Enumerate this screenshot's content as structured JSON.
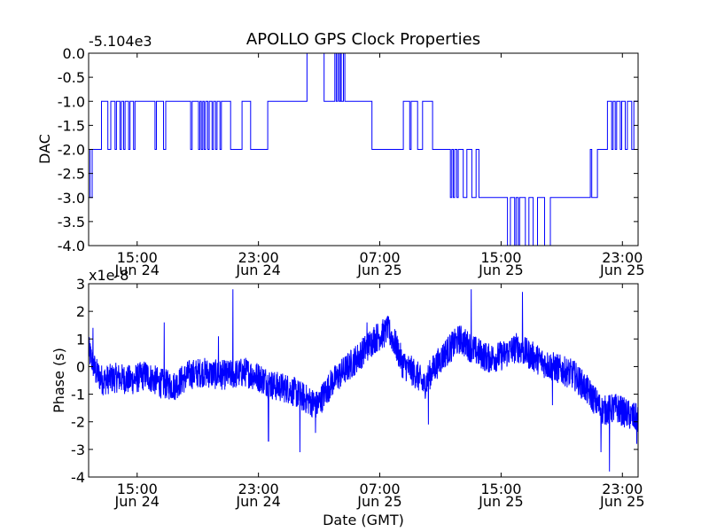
{
  "title": "APOLLO GPS Clock Properties",
  "colors": {
    "series": "#0000ff",
    "axis": "#000000",
    "background": "#ffffff"
  },
  "chart_data": [
    {
      "type": "line",
      "name": "dac-chart",
      "title": "APOLLO GPS Clock Properties",
      "ylabel": "DAC",
      "xlabel": "",
      "offset_label": "-5.104e3",
      "x_unit": "hours since 2011-06-24 10:00 GMT",
      "xlim": [
        0,
        38.5
      ],
      "ylim": [
        -4.0,
        0.0
      ],
      "yticks": [
        0.0,
        -0.5,
        -1.0,
        -1.5,
        -2.0,
        -2.5,
        -3.0,
        -3.5,
        -4.0
      ],
      "ytick_labels": [
        "0.0",
        "-0.5",
        "-1.0",
        "-1.5",
        "-2.0",
        "-2.5",
        "-3.0",
        "-3.5",
        "-4.0"
      ],
      "xticks": [
        {
          "x": 3.4,
          "time": "15:00",
          "date": "Jun 24"
        },
        {
          "x": 11.9,
          "time": "23:00",
          "date": "Jun 24"
        },
        {
          "x": 20.4,
          "time": "07:00",
          "date": "Jun 25"
        },
        {
          "x": 28.9,
          "time": "15:00",
          "date": "Jun 25"
        },
        {
          "x": 37.4,
          "time": "23:00",
          "date": "Jun 25"
        }
      ],
      "step_points": [
        [
          0.0,
          -2.0
        ],
        [
          0.1,
          -3.0
        ],
        [
          0.25,
          -2.0
        ],
        [
          0.8,
          -2.0
        ],
        [
          0.9,
          -1.0
        ],
        [
          1.3,
          -1.0
        ],
        [
          1.35,
          -2.0
        ],
        [
          1.5,
          -2.0
        ],
        [
          1.55,
          -1.0
        ],
        [
          1.8,
          -1.0
        ],
        [
          1.85,
          -2.0
        ],
        [
          1.95,
          -1.0
        ],
        [
          2.15,
          -1.0
        ],
        [
          2.2,
          -2.0
        ],
        [
          2.3,
          -1.0
        ],
        [
          2.45,
          -2.0
        ],
        [
          2.55,
          -1.0
        ],
        [
          2.75,
          -1.0
        ],
        [
          2.8,
          -2.0
        ],
        [
          2.9,
          -1.0
        ],
        [
          3.1,
          -1.0
        ],
        [
          3.15,
          -2.0
        ],
        [
          3.25,
          -1.0
        ],
        [
          4.6,
          -1.0
        ],
        [
          4.65,
          -2.0
        ],
        [
          4.75,
          -1.0
        ],
        [
          5.2,
          -1.0
        ],
        [
          5.25,
          -2.0
        ],
        [
          5.4,
          -1.0
        ],
        [
          7.1,
          -1.0
        ],
        [
          7.15,
          -2.0
        ],
        [
          7.25,
          -1.0
        ],
        [
          7.65,
          -1.0
        ],
        [
          7.7,
          -2.0
        ],
        [
          7.8,
          -1.0
        ],
        [
          7.9,
          -2.0
        ],
        [
          8.0,
          -1.0
        ],
        [
          8.1,
          -2.0
        ],
        [
          8.2,
          -1.0
        ],
        [
          8.35,
          -2.0
        ],
        [
          8.45,
          -1.0
        ],
        [
          8.6,
          -1.0
        ],
        [
          8.65,
          -2.0
        ],
        [
          8.75,
          -1.0
        ],
        [
          8.9,
          -2.0
        ],
        [
          9.0,
          -1.0
        ],
        [
          9.15,
          -1.0
        ],
        [
          9.2,
          -2.0
        ],
        [
          9.3,
          -1.0
        ],
        [
          9.9,
          -1.0
        ],
        [
          9.95,
          -2.0
        ],
        [
          10.7,
          -2.0
        ],
        [
          10.75,
          -1.0
        ],
        [
          11.3,
          -1.0
        ],
        [
          11.35,
          -2.0
        ],
        [
          12.5,
          -2.0
        ],
        [
          12.55,
          -1.0
        ],
        [
          15.2,
          -1.0
        ],
        [
          15.3,
          0.0
        ],
        [
          16.45,
          0.0
        ],
        [
          16.5,
          -1.0
        ],
        [
          17.2,
          -1.0
        ],
        [
          17.25,
          0.0
        ],
        [
          17.35,
          -1.0
        ],
        [
          17.45,
          0.0
        ],
        [
          17.55,
          -1.0
        ],
        [
          17.65,
          0.0
        ],
        [
          17.7,
          -1.0
        ],
        [
          17.85,
          0.0
        ],
        [
          17.95,
          -1.0
        ],
        [
          19.8,
          -1.0
        ],
        [
          19.85,
          -2.0
        ],
        [
          22.0,
          -2.0
        ],
        [
          22.05,
          -1.0
        ],
        [
          22.45,
          -1.0
        ],
        [
          22.5,
          -2.0
        ],
        [
          22.6,
          -1.0
        ],
        [
          23.0,
          -1.0
        ],
        [
          23.05,
          -2.0
        ],
        [
          23.35,
          -2.0
        ],
        [
          23.4,
          -1.0
        ],
        [
          24.05,
          -1.0
        ],
        [
          24.1,
          -2.0
        ],
        [
          25.3,
          -2.0
        ],
        [
          25.35,
          -3.0
        ],
        [
          25.45,
          -2.0
        ],
        [
          25.55,
          -3.0
        ],
        [
          25.65,
          -2.0
        ],
        [
          25.8,
          -3.0
        ],
        [
          25.9,
          -2.0
        ],
        [
          26.2,
          -2.0
        ],
        [
          26.25,
          -3.0
        ],
        [
          26.45,
          -3.0
        ],
        [
          26.5,
          -2.0
        ],
        [
          26.8,
          -2.0
        ],
        [
          26.85,
          -3.0
        ],
        [
          27.1,
          -3.0
        ],
        [
          27.15,
          -2.0
        ],
        [
          27.3,
          -2.0
        ],
        [
          27.35,
          -3.0
        ],
        [
          29.3,
          -3.0
        ],
        [
          29.35,
          -4.0
        ],
        [
          29.5,
          -4.0
        ],
        [
          29.55,
          -3.0
        ],
        [
          29.8,
          -3.0
        ],
        [
          29.85,
          -4.0
        ],
        [
          29.95,
          -3.0
        ],
        [
          30.1,
          -4.0
        ],
        [
          30.2,
          -3.0
        ],
        [
          30.55,
          -3.0
        ],
        [
          30.6,
          -4.0
        ],
        [
          30.8,
          -4.0
        ],
        [
          30.85,
          -3.0
        ],
        [
          31.1,
          -3.0
        ],
        [
          31.15,
          -4.0
        ],
        [
          31.4,
          -4.0
        ],
        [
          31.45,
          -3.0
        ],
        [
          31.9,
          -3.0
        ],
        [
          31.95,
          -4.0
        ],
        [
          32.3,
          -4.0
        ],
        [
          32.35,
          -3.0
        ],
        [
          35.1,
          -3.0
        ],
        [
          35.15,
          -2.0
        ],
        [
          35.25,
          -3.0
        ],
        [
          35.6,
          -3.0
        ],
        [
          35.65,
          -2.0
        ],
        [
          36.3,
          -2.0
        ],
        [
          36.35,
          -1.0
        ],
        [
          36.6,
          -1.0
        ],
        [
          36.65,
          -2.0
        ],
        [
          36.75,
          -1.0
        ],
        [
          36.9,
          -2.0
        ],
        [
          37.0,
          -1.0
        ],
        [
          37.2,
          -1.0
        ],
        [
          37.25,
          -2.0
        ],
        [
          37.35,
          -1.0
        ],
        [
          37.55,
          -1.0
        ],
        [
          37.6,
          -2.0
        ],
        [
          37.75,
          -1.0
        ],
        [
          38.0,
          -1.0
        ],
        [
          38.05,
          -2.0
        ],
        [
          38.15,
          -2.0
        ],
        [
          38.2,
          -1.0
        ],
        [
          38.5,
          -1.0
        ]
      ]
    },
    {
      "type": "line",
      "name": "phase-chart",
      "title": "",
      "ylabel": "Phase (s)",
      "xlabel": "Date (GMT)",
      "offset_label": "x1e-8",
      "x_unit": "hours since 2011-06-24 10:00 GMT",
      "xlim": [
        0,
        38.5
      ],
      "ylim": [
        -4,
        3
      ],
      "yticks": [
        3,
        2,
        1,
        0,
        -1,
        -2,
        -3,
        -4
      ],
      "ytick_labels": [
        "3",
        "2",
        "1",
        "0",
        "-1",
        "-2",
        "-3",
        "-4"
      ],
      "xticks": [
        {
          "x": 3.4,
          "time": "15:00",
          "date": "Jun 24"
        },
        {
          "x": 11.9,
          "time": "23:00",
          "date": "Jun 24"
        },
        {
          "x": 20.4,
          "time": "07:00",
          "date": "Jun 25"
        },
        {
          "x": 28.9,
          "time": "15:00",
          "date": "Jun 25"
        },
        {
          "x": 37.4,
          "time": "23:00",
          "date": "Jun 25"
        }
      ],
      "trend": [
        [
          0.0,
          0.6
        ],
        [
          0.5,
          -0.2
        ],
        [
          1.0,
          -0.5
        ],
        [
          2.0,
          -0.4
        ],
        [
          3.0,
          -0.5
        ],
        [
          4.0,
          -0.3
        ],
        [
          5.0,
          -0.6
        ],
        [
          6.0,
          -0.7
        ],
        [
          7.0,
          -0.3
        ],
        [
          8.0,
          -0.2
        ],
        [
          9.0,
          -0.3
        ],
        [
          10.0,
          -0.3
        ],
        [
          11.0,
          -0.2
        ],
        [
          12.0,
          -0.4
        ],
        [
          13.0,
          -0.7
        ],
        [
          14.0,
          -0.8
        ],
        [
          15.0,
          -1.1
        ],
        [
          16.0,
          -1.4
        ],
        [
          17.0,
          -0.6
        ],
        [
          18.0,
          -0.1
        ],
        [
          19.0,
          0.4
        ],
        [
          20.0,
          1.0
        ],
        [
          21.0,
          1.3
        ],
        [
          21.5,
          0.8
        ],
        [
          22.0,
          0.1
        ],
        [
          23.0,
          -0.3
        ],
        [
          23.5,
          -0.7
        ],
        [
          24.0,
          -0.2
        ],
        [
          25.0,
          0.5
        ],
        [
          26.0,
          1.0
        ],
        [
          27.0,
          0.6
        ],
        [
          28.0,
          0.3
        ],
        [
          29.0,
          0.4
        ],
        [
          30.0,
          0.7
        ],
        [
          31.0,
          0.4
        ],
        [
          32.0,
          0.1
        ],
        [
          33.0,
          -0.1
        ],
        [
          34.0,
          -0.3
        ],
        [
          35.0,
          -0.9
        ],
        [
          36.0,
          -1.6
        ],
        [
          37.0,
          -1.5
        ],
        [
          38.0,
          -1.8
        ],
        [
          38.5,
          -1.9
        ]
      ],
      "noise_amplitude": 0.55,
      "spikes": [
        [
          0.3,
          1.4
        ],
        [
          5.3,
          1.6
        ],
        [
          9.1,
          1.1
        ],
        [
          10.1,
          2.8
        ],
        [
          12.6,
          -2.7
        ],
        [
          14.8,
          -3.1
        ],
        [
          15.9,
          -2.4
        ],
        [
          19.5,
          1.6
        ],
        [
          20.9,
          1.5
        ],
        [
          23.8,
          -2.1
        ],
        [
          26.8,
          2.8
        ],
        [
          30.4,
          2.7
        ],
        [
          32.5,
          -1.4
        ],
        [
          35.9,
          -3.1
        ],
        [
          36.5,
          -3.8
        ],
        [
          38.4,
          -2.8
        ]
      ]
    }
  ]
}
